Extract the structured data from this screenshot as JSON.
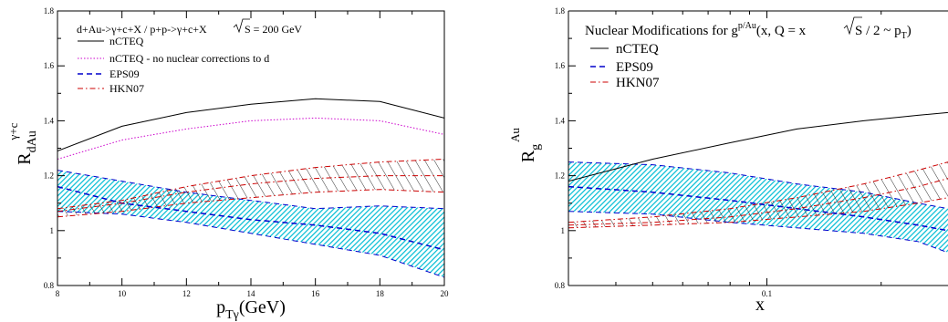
{
  "chart_data": [
    {
      "type": "line",
      "header": "d+Au->γ+c+X / p+p->γ+c+X",
      "sqrt_label": "S = 200 GeV",
      "ylabel": "R",
      "ylabel_sub": "dAu",
      "ylabel_sup": "γ+c",
      "xlabel": "p",
      "xlabel_sub": "Tγ",
      "xlabel_unit": "(GeV)",
      "xlim": [
        8,
        20
      ],
      "ylim": [
        0.8,
        1.8
      ],
      "xticks": [
        "8",
        "10",
        "12",
        "14",
        "16",
        "18",
        "20"
      ],
      "yticks": [
        "0.8",
        "1",
        "1.2",
        "1.4",
        "1.6",
        "1.8"
      ],
      "x": [
        8,
        10,
        12,
        14,
        16,
        18,
        20
      ],
      "series": [
        {
          "name": "nCTEQ",
          "color": "#000000",
          "style": "solid",
          "values": [
            1.29,
            1.38,
            1.43,
            1.46,
            1.48,
            1.47,
            1.41
          ]
        },
        {
          "name": "nCTEQ - no nuclear corrections to d",
          "color": "#cc00cc",
          "style": "dotted",
          "values": [
            1.26,
            1.33,
            1.37,
            1.4,
            1.41,
            1.4,
            1.35
          ]
        },
        {
          "name": "EPS09",
          "color": "#0000cc",
          "style": "dashed",
          "values": [
            1.16,
            1.1,
            1.07,
            1.04,
            1.02,
            0.99,
            0.93
          ]
        },
        {
          "name": "HKN07",
          "color": "#cc0000",
          "style": "dashdot",
          "values": [
            1.07,
            1.1,
            1.14,
            1.17,
            1.19,
            1.2,
            1.2
          ]
        }
      ],
      "bands": [
        {
          "name": "EPS09",
          "color": "#00bcd4",
          "upper": [
            1.22,
            1.18,
            1.14,
            1.11,
            1.08,
            1.09,
            1.08
          ],
          "lower": [
            1.07,
            1.06,
            1.03,
            0.99,
            0.95,
            0.91,
            0.83
          ]
        },
        {
          "name": "HKN07",
          "color": "#cc0000",
          "upper": [
            1.08,
            1.11,
            1.16,
            1.2,
            1.23,
            1.25,
            1.26
          ],
          "lower": [
            1.05,
            1.07,
            1.1,
            1.12,
            1.14,
            1.15,
            1.14
          ]
        }
      ]
    },
    {
      "type": "line",
      "header": "Nuclear Modifications for g",
      "header_sup": "p/Au",
      "header_args": "(x, Q = x",
      "header_sqrt": "S",
      "header_tail": " / 2 ~ p",
      "header_tail_sub": "T",
      "header_close": ")",
      "ylabel": "R",
      "ylabel_sub": "g",
      "ylabel_sup": "Au",
      "xlabel": "x",
      "xscale": "log",
      "xlim": [
        0.03,
        0.3
      ],
      "ylim": [
        0.8,
        1.8
      ],
      "xticks": [
        "0.1"
      ],
      "yticks": [
        "0.8",
        "1",
        "1.2",
        "1.4",
        "1.6",
        "1.8"
      ],
      "x": [
        0.03,
        0.05,
        0.08,
        0.12,
        0.18,
        0.25,
        0.3
      ],
      "series": [
        {
          "name": "nCTEQ",
          "color": "#000000",
          "style": "solid",
          "values": [
            1.18,
            1.26,
            1.32,
            1.37,
            1.4,
            1.42,
            1.43
          ]
        },
        {
          "name": "EPS09",
          "color": "#0000cc",
          "style": "dashed",
          "values": [
            1.16,
            1.14,
            1.11,
            1.08,
            1.05,
            1.02,
            1.0
          ]
        },
        {
          "name": "HKN07",
          "color": "#cc0000",
          "style": "dashdot",
          "values": [
            1.02,
            1.03,
            1.05,
            1.08,
            1.12,
            1.16,
            1.19
          ]
        }
      ],
      "bands": [
        {
          "name": "EPS09",
          "color": "#00bcd4",
          "upper": [
            1.25,
            1.24,
            1.21,
            1.17,
            1.14,
            1.1,
            1.08
          ],
          "lower": [
            1.07,
            1.06,
            1.03,
            1.01,
            0.99,
            0.96,
            0.92
          ]
        },
        {
          "name": "HKN07",
          "color": "#cc0000",
          "upper": [
            1.03,
            1.05,
            1.08,
            1.12,
            1.17,
            1.22,
            1.25
          ],
          "lower": [
            1.01,
            1.02,
            1.03,
            1.05,
            1.07,
            1.1,
            1.12
          ]
        }
      ]
    }
  ]
}
